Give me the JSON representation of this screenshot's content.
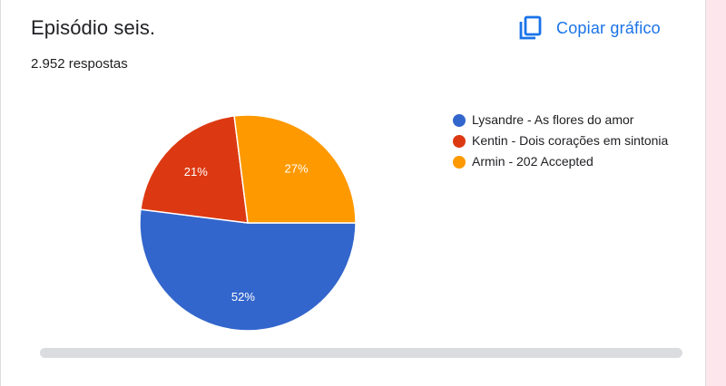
{
  "header": {
    "title": "Episódio seis.",
    "responses": "2.952 respostas",
    "copy_label": "Copiar gráfico",
    "copy_icon": "copy-icon"
  },
  "colors": {
    "accent": "#1a73e8",
    "side_strip": "#fde7ec"
  },
  "chart_data": {
    "type": "pie",
    "title": "Episódio seis.",
    "legend_position": "right",
    "slices": [
      {
        "label": "Lysandre - As flores do amor",
        "value": 52,
        "display": "52%",
        "color": "#3366cc"
      },
      {
        "label": "Kentin - Dois corações em sintonia",
        "value": 21,
        "display": "21%",
        "color": "#dc3912"
      },
      {
        "label": "Armin - 202 Accepted",
        "value": 27,
        "display": "27%",
        "color": "#ff9900"
      }
    ]
  }
}
